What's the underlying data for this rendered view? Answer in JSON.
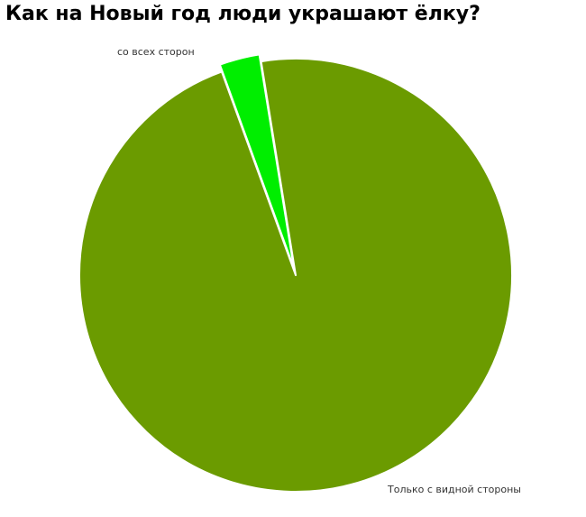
{
  "chart_data": {
    "type": "pie",
    "title": "Как на Новый год люди украшают ёлку?",
    "slices": [
      {
        "label": "со всех сторон",
        "value": 3,
        "color": "#00ee00"
      },
      {
        "label": "Только с видной стороны",
        "value": 97,
        "color": "#6b9b00"
      }
    ],
    "border_color": "#ffffff",
    "legend": "none"
  }
}
